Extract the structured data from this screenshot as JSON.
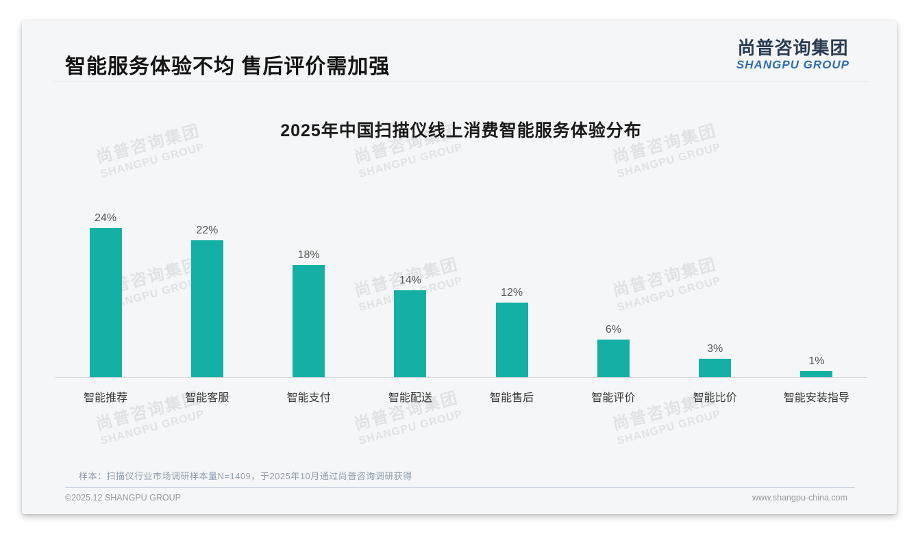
{
  "slide": {
    "title": "智能服务体验不均 售后评价需加强",
    "logo": {
      "cn": "尚普咨询集团",
      "en": "SHANGPU GROUP"
    },
    "watermark": {
      "cn": "尚普咨询集团",
      "en": "SHANGPU GROUP"
    },
    "footnote": "样本：扫描仪行业市场调研样本量N=1409，于2025年10月通过尚普咨询调研获得",
    "footer_left": "©2025.12 SHANGPU GROUP",
    "footer_right": "www.shangpu-china.com"
  },
  "chart_data": {
    "type": "bar",
    "title": "2025年中国扫描仪线上消费智能服务体验分布",
    "categories": [
      "智能推荐",
      "智能客服",
      "智能支付",
      "智能配送",
      "智能售后",
      "智能评价",
      "智能比价",
      "智能安装指导"
    ],
    "values": [
      24,
      22,
      18,
      14,
      12,
      6,
      3,
      1
    ],
    "value_labels": [
      "24%",
      "22%",
      "18%",
      "14%",
      "12%",
      "6%",
      "3%",
      "1%"
    ],
    "unit": "%",
    "xlabel": "",
    "ylabel": "",
    "ylim": [
      0,
      26
    ],
    "grid": false,
    "legend": "none",
    "bar_color": "#15b0a5"
  },
  "colors": {
    "bar": "#15b0a5",
    "card_bg": "#f5f6f7",
    "logo_cn": "#2b3c52",
    "logo_en": "#2f6db0",
    "footnote": "#8e9eb0",
    "axis": "#d9d9d9"
  }
}
